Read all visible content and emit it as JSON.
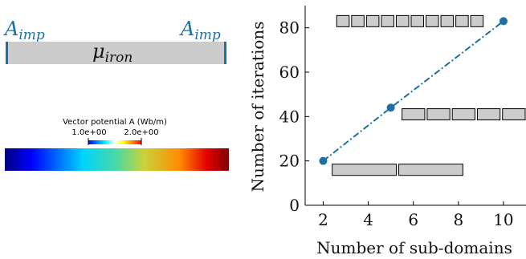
{
  "left_figure": {
    "label_left": "A",
    "label_left_sub": "imp",
    "label_right": "A",
    "label_right_sub": "imp",
    "bar_label": "μ",
    "bar_label_sub": "iron",
    "colorbar_title": "Vector potential A (Wb/m)",
    "colorbar_min": "1.0e+00",
    "colorbar_max": "2.0e+00",
    "label_color": "#1f6fa0",
    "bar_fill": "#cccccc"
  },
  "chart_data": {
    "type": "line",
    "xlabel": "Number of sub-domains",
    "ylabel": "Number of iterations",
    "xlim": [
      1.2,
      11
    ],
    "ylim": [
      0,
      90
    ],
    "xticks": [
      2,
      4,
      6,
      8,
      10
    ],
    "yticks": [
      0,
      20,
      40,
      60,
      80
    ],
    "series": [
      {
        "x": [
          2,
          5,
          10
        ],
        "y": [
          20,
          44,
          83
        ],
        "color": "#1f6fa0",
        "style": "dash-dot",
        "marker": "circle"
      }
    ],
    "box_rows": [
      {
        "y": 83,
        "x_start": 2.6,
        "x_end": 9.1,
        "count": 10
      },
      {
        "y": 41,
        "x_start": 5.5,
        "x_end": 11,
        "count": 5
      },
      {
        "y": 16,
        "x_start": 2.4,
        "x_end": 8.2,
        "count": 2
      }
    ]
  }
}
